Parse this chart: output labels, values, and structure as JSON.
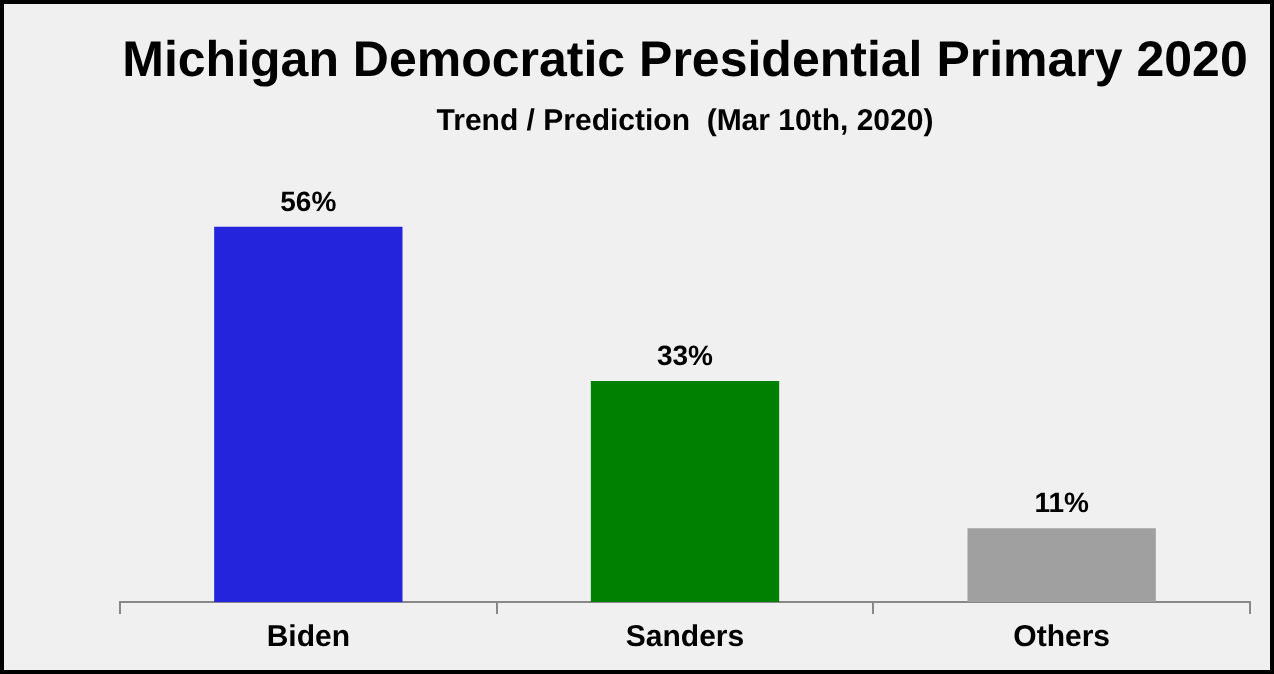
{
  "chart_data": {
    "type": "bar",
    "title": "Michigan Democratic Presidential Primary 2020",
    "subtitle": "Trend / Prediction  (Mar 10th, 2020)",
    "categories": [
      "Biden",
      "Sanders",
      "Others"
    ],
    "values": [
      56,
      33,
      11
    ],
    "colors": [
      "#2424dc",
      "#008000",
      "#a0a0a0"
    ],
    "data_labels": true,
    "value_labels": [
      "56%",
      "33%",
      "11%"
    ],
    "grid": false,
    "legend": false
  }
}
